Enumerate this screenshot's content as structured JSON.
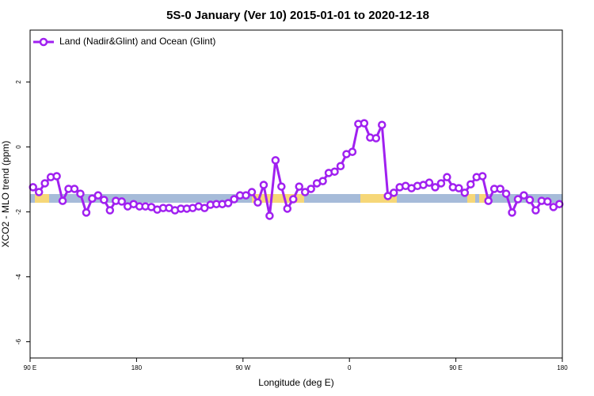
{
  "chart_data": {
    "type": "line",
    "title": "5S-0 January (Ver 10)   2015-01-01 to 2020-12-18",
    "x_label": "Longitude (deg E)",
    "y_label": "XCO2 - MLO trend (ppm)",
    "xlim": [
      90,
      540
    ],
    "ylim": [
      -6.5,
      3.6
    ],
    "xticks": [
      {
        "value": 90,
        "label": "90 E"
      },
      {
        "value": 180,
        "label": "180"
      },
      {
        "value": 270,
        "label": "90 W"
      },
      {
        "value": 360,
        "label": "0"
      },
      {
        "value": 450,
        "label": "90 E"
      },
      {
        "value": 540,
        "label": "180"
      }
    ],
    "yticks": [
      -6,
      -4,
      -2,
      0,
      2
    ],
    "legend": "top-left",
    "x": [
      92.5,
      97.5,
      102.5,
      107.5,
      112.5,
      117.5,
      122.5,
      127.5,
      132.5,
      137.5,
      142.5,
      147.5,
      152.5,
      157.5,
      162.5,
      167.5,
      172.5,
      177.5,
      182.5,
      187.5,
      192.5,
      197.5,
      202.5,
      207.5,
      212.5,
      217.5,
      222.5,
      227.5,
      232.5,
      237.5,
      242.5,
      247.5,
      252.5,
      257.5,
      262.5,
      267.5,
      272.5,
      277.5,
      282.5,
      287.5,
      292.5,
      297.5,
      302.5,
      307.5,
      312.5,
      317.5,
      322.5,
      327.5,
      332.5,
      337.5,
      342.5,
      347.5,
      352.5,
      357.5,
      362.5,
      367.5,
      372.5,
      377.5,
      382.5,
      387.5,
      392.5,
      397.5,
      402.5,
      407.5,
      412.5,
      417.5,
      422.5,
      427.5,
      432.5,
      437.5,
      442.5,
      447.5,
      452.5,
      457.5,
      462.5,
      467.5,
      472.5,
      477.5,
      482.5,
      487.5,
      492.5,
      497.5,
      502.5,
      507.5,
      512.5,
      517.5,
      522.5,
      527.5,
      532.5,
      537.5
    ],
    "series": [
      {
        "name": "Land (Nadir&Glint) and Ocean (Glint)",
        "color": "#a020f0",
        "values": [
          -1.24,
          -1.39,
          -1.12,
          -0.93,
          -0.9,
          -1.66,
          -1.29,
          -1.29,
          -1.44,
          -2.02,
          -1.59,
          -1.49,
          -1.63,
          -1.95,
          -1.66,
          -1.68,
          -1.83,
          -1.76,
          -1.83,
          -1.83,
          -1.85,
          -1.93,
          -1.88,
          -1.88,
          -1.95,
          -1.9,
          -1.9,
          -1.88,
          -1.83,
          -1.88,
          -1.78,
          -1.76,
          -1.76,
          -1.73,
          -1.61,
          -1.49,
          -1.49,
          -1.39,
          -1.71,
          -1.17,
          -2.12,
          -0.41,
          -1.22,
          -1.9,
          -1.61,
          -1.22,
          -1.39,
          -1.29,
          -1.12,
          -1.05,
          -0.8,
          -0.76,
          -0.59,
          -0.22,
          -0.15,
          0.71,
          0.73,
          0.29,
          0.27,
          0.68,
          -1.51,
          -1.41,
          -1.24,
          -1.2,
          -1.27,
          -1.2,
          -1.17,
          -1.1,
          -1.24,
          -1.12,
          -0.93,
          -1.24,
          -1.27,
          -1.41,
          -1.15,
          -0.93,
          -0.9,
          -1.66,
          -1.29,
          -1.29,
          -1.44,
          -2.02,
          -1.61,
          -1.49,
          -1.63,
          -1.95,
          -1.66,
          -1.68,
          -1.85,
          -1.76
        ]
      }
    ]
  }
}
